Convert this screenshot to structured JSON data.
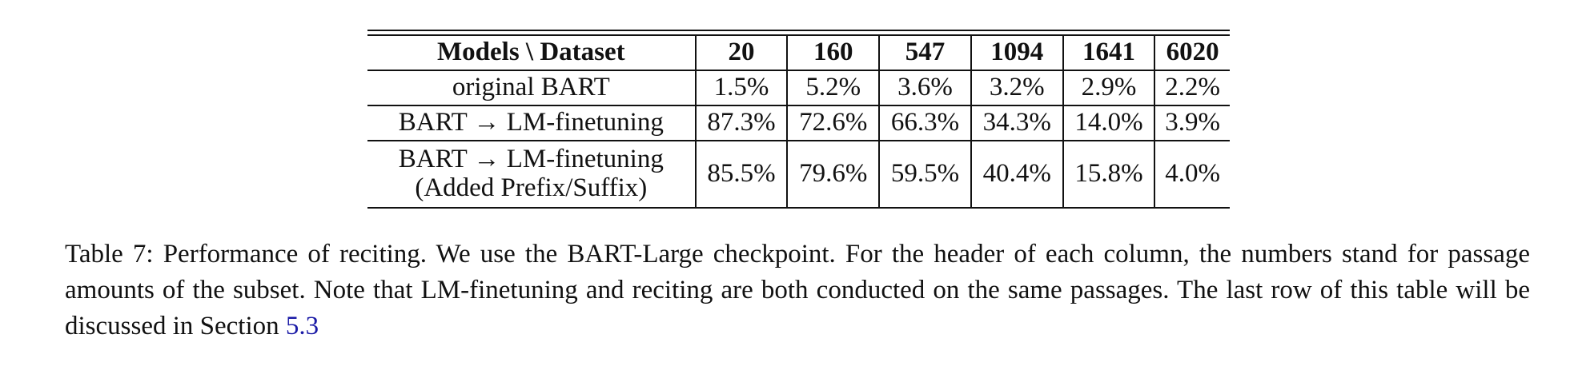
{
  "table": {
    "header": [
      "Models \\ Dataset",
      "20",
      "160",
      "547",
      "1094",
      "1641",
      "6020"
    ],
    "rows": [
      {
        "model": [
          "original BART"
        ],
        "values": [
          "1.5%",
          "5.2%",
          "3.6%",
          "3.2%",
          "2.9%",
          "2.2%"
        ]
      },
      {
        "model": [
          "BART → LM-finetuning"
        ],
        "values": [
          "87.3%",
          "72.6%",
          "66.3%",
          "34.3%",
          "14.0%",
          "3.9%"
        ]
      },
      {
        "model": [
          "BART → LM-finetuning",
          "(Added Prefix/Suffix)"
        ],
        "values": [
          "85.5%",
          "79.6%",
          "59.5%",
          "40.4%",
          "15.8%",
          "4.0%"
        ]
      }
    ]
  },
  "caption": {
    "text": "Table 7: Performance of reciting. We use the BART-Large checkpoint. For the header of each column, the numbers stand for passage amounts of the subset. Note that LM-finetuning and reciting are both conducted on the same passages. The last row of this table will be discussed in Section ",
    "link": "5.3"
  }
}
